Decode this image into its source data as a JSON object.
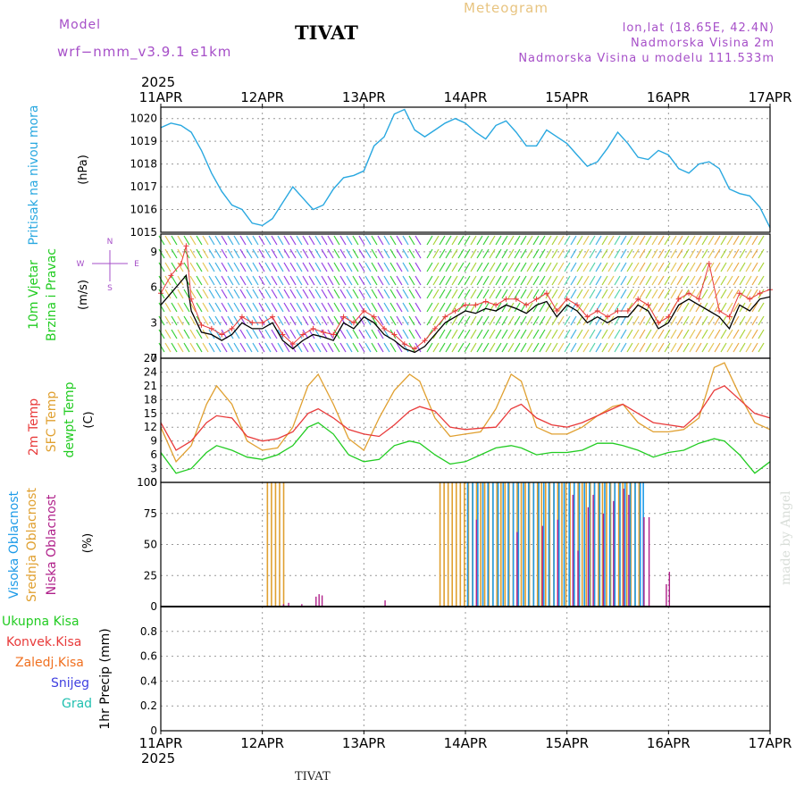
{
  "header": {
    "model_label": "Model",
    "model_name": "wrf−nmm_v3.9.1  e1km",
    "station": "TIVAT",
    "app_title": "Meteogram",
    "lonlat": "lon,lat (18.65E, 42.4N)",
    "elevation": "Nadmorska Visina 2m",
    "model_elevation": "Nadmorska Visina u modelu 111.533m"
  },
  "footer": {
    "station": "TIVAT",
    "credit": "made by Angel"
  },
  "colors": {
    "pressure": "#29a8e0",
    "temp2m": "#e83a3a",
    "sfc_temp": "#e0a030",
    "dewpoint": "#22cc22",
    "wind_speed": "#000000",
    "wind_gust": "#e83a3a",
    "cloud_high": "#1e9be8",
    "cloud_mid": "#e0a030",
    "cloud_low": "#b0208a",
    "precip_total": "#22cc22",
    "precip_conv": "#e83a3a",
    "precip_frozen": "#f07020",
    "snow": "#4040e0",
    "graupel": "#20c0b0",
    "header_purple": "#a64fc8"
  },
  "chart_data": [
    {
      "type": "line",
      "panel": "pressure",
      "year": "2025",
      "x_tick_labels": [
        "11APR",
        "12APR",
        "13APR",
        "14APR",
        "15APR",
        "16APR",
        "17APR"
      ],
      "ylabel_lines": [
        "Pritisak na nivou mora"
      ],
      "unit": "(hPa)",
      "ylim": [
        1015,
        1020.5
      ],
      "yticks": [
        1015,
        1016,
        1017,
        1018,
        1019,
        1020
      ],
      "grid": true,
      "series": [
        {
          "key": "pressure",
          "x": [
            0,
            0.1,
            0.2,
            0.3,
            0.4,
            0.5,
            0.6,
            0.7,
            0.8,
            0.9,
            1.0,
            1.1,
            1.2,
            1.3,
            1.4,
            1.5,
            1.6,
            1.7,
            1.8,
            1.9,
            2.0,
            2.1,
            2.2,
            2.3,
            2.4,
            2.5,
            2.6,
            2.7,
            2.8,
            2.9,
            3.0,
            3.1,
            3.2,
            3.3,
            3.4,
            3.5,
            3.6,
            3.7,
            3.8,
            3.9,
            4.0,
            4.1,
            4.2,
            4.3,
            4.4,
            4.5,
            4.6,
            4.7,
            4.8,
            4.9,
            5.0,
            5.1,
            5.2,
            5.3,
            5.4,
            5.5,
            5.6,
            5.7,
            5.8,
            5.9,
            6.0
          ],
          "values": [
            1019.6,
            1019.8,
            1019.7,
            1019.4,
            1018.6,
            1017.6,
            1016.8,
            1016.2,
            1016.0,
            1015.4,
            1015.3,
            1015.6,
            1016.3,
            1017.0,
            1016.5,
            1016.0,
            1016.2,
            1016.9,
            1017.4,
            1017.5,
            1017.7,
            1018.8,
            1019.2,
            1020.2,
            1020.4,
            1019.5,
            1019.2,
            1019.5,
            1019.8,
            1020.0,
            1019.8,
            1019.4,
            1019.1,
            1019.7,
            1019.9,
            1019.4,
            1018.8,
            1018.8,
            1019.5,
            1019.2,
            1018.9,
            1018.4,
            1017.9,
            1018.1,
            1018.7,
            1019.4,
            1018.9,
            1018.3,
            1018.2,
            1018.6,
            1018.4,
            1017.8,
            1017.6,
            1018.0,
            1018.1,
            1017.8,
            1016.9,
            1016.7,
            1016.6,
            1016.1,
            1015.2
          ]
        }
      ]
    },
    {
      "type": "line",
      "panel": "wind",
      "ylabel_lines": [
        "10m Vjetar",
        "Brzina i Pravac"
      ],
      "unit": "(m/s)",
      "direction_key": [
        "N",
        "E",
        "S",
        "W"
      ],
      "ylim": [
        0,
        10.5
      ],
      "yticks": [
        0,
        3,
        6,
        9
      ],
      "grid": true,
      "series": [
        {
          "key": "speed",
          "x": [
            0,
            0.1,
            0.2,
            0.25,
            0.3,
            0.4,
            0.5,
            0.6,
            0.7,
            0.8,
            0.9,
            1.0,
            1.1,
            1.2,
            1.3,
            1.4,
            1.5,
            1.6,
            1.7,
            1.8,
            1.9,
            2.0,
            2.1,
            2.2,
            2.3,
            2.4,
            2.5,
            2.6,
            2.7,
            2.8,
            2.9,
            3.0,
            3.1,
            3.2,
            3.3,
            3.4,
            3.5,
            3.6,
            3.7,
            3.8,
            3.9,
            4.0,
            4.1,
            4.2,
            4.3,
            4.4,
            4.5,
            4.6,
            4.7,
            4.8,
            4.9,
            5.0,
            5.1,
            5.2,
            5.3,
            5.4,
            5.5,
            5.6,
            5.7,
            5.8,
            5.9,
            6.0
          ],
          "values": [
            4.5,
            5.5,
            6.5,
            7.0,
            4.0,
            2.2,
            2.0,
            1.5,
            2.0,
            3.0,
            2.5,
            2.5,
            3.0,
            1.5,
            0.8,
            1.5,
            2.0,
            1.8,
            1.5,
            3.0,
            2.5,
            3.5,
            3.0,
            2.0,
            1.5,
            0.8,
            0.5,
            1.0,
            2.0,
            3.0,
            3.5,
            4.0,
            3.8,
            4.2,
            4.0,
            4.5,
            4.2,
            3.8,
            4.5,
            4.8,
            3.5,
            4.5,
            4.0,
            3.0,
            3.5,
            3.0,
            3.5,
            3.5,
            4.5,
            4.0,
            2.5,
            3.0,
            4.5,
            5.0,
            4.5,
            4.0,
            3.5,
            2.5,
            4.5,
            4.0,
            5.0,
            5.2
          ]
        },
        {
          "key": "gust",
          "x": [
            0,
            0.1,
            0.2,
            0.25,
            0.3,
            0.4,
            0.5,
            0.6,
            0.7,
            0.8,
            0.9,
            1.0,
            1.1,
            1.2,
            1.3,
            1.4,
            1.5,
            1.6,
            1.7,
            1.8,
            1.9,
            2.0,
            2.1,
            2.2,
            2.3,
            2.4,
            2.5,
            2.6,
            2.7,
            2.8,
            2.9,
            3.0,
            3.1,
            3.2,
            3.3,
            3.4,
            3.5,
            3.6,
            3.7,
            3.8,
            3.9,
            4.0,
            4.1,
            4.2,
            4.3,
            4.4,
            4.5,
            4.6,
            4.7,
            4.8,
            4.9,
            5.0,
            5.1,
            5.2,
            5.3,
            5.4,
            5.5,
            5.6,
            5.7,
            5.8,
            5.9,
            6.0
          ],
          "values": [
            5.5,
            7.0,
            8.0,
            9.5,
            5.0,
            2.8,
            2.5,
            2.0,
            2.5,
            3.5,
            3.0,
            3.0,
            3.5,
            2.0,
            1.2,
            2.0,
            2.5,
            2.2,
            2.0,
            3.5,
            3.0,
            4.0,
            3.5,
            2.5,
            2.0,
            1.2,
            0.8,
            1.5,
            2.5,
            3.5,
            4.0,
            4.5,
            4.5,
            4.8,
            4.5,
            5.0,
            5.0,
            4.5,
            5.0,
            5.5,
            4.0,
            5.0,
            4.5,
            3.5,
            4.0,
            3.5,
            4.0,
            4.0,
            5.0,
            4.5,
            3.0,
            3.5,
            5.0,
            5.5,
            5.0,
            8.0,
            4.0,
            3.5,
            5.5,
            5.0,
            5.5,
            5.8
          ]
        }
      ]
    },
    {
      "type": "line",
      "panel": "temperature",
      "ylabel_lines": [
        "2m Temp",
        "SFC Temp",
        "dewpt Temp"
      ],
      "unit": "(C)",
      "ylim": [
        0,
        27
      ],
      "yticks": [
        0,
        3,
        6,
        9,
        12,
        15,
        18,
        21,
        24,
        27
      ],
      "grid": true,
      "series": [
        {
          "key": "temp2m",
          "x": [
            0,
            0.15,
            0.3,
            0.45,
            0.55,
            0.7,
            0.85,
            1.0,
            1.15,
            1.3,
            1.45,
            1.55,
            1.7,
            1.85,
            2.0,
            2.15,
            2.3,
            2.45,
            2.55,
            2.7,
            2.85,
            3.0,
            3.15,
            3.3,
            3.45,
            3.55,
            3.7,
            3.85,
            4.0,
            4.15,
            4.3,
            4.45,
            4.55,
            4.7,
            4.85,
            5.0,
            5.15,
            5.3,
            5.45,
            5.55,
            5.7,
            5.85,
            6.0
          ],
          "values": [
            13.0,
            7.0,
            9.0,
            13.0,
            14.5,
            14.0,
            10.0,
            9.0,
            9.5,
            11.0,
            15.0,
            16.0,
            14.0,
            11.5,
            10.5,
            10.0,
            12.5,
            15.5,
            16.5,
            15.5,
            12.0,
            11.5,
            11.8,
            12.0,
            16.0,
            17.0,
            14.0,
            12.5,
            12.0,
            13.0,
            14.5,
            16.0,
            17.0,
            15.0,
            13.0,
            12.5,
            12.0,
            15.0,
            20.0,
            21.0,
            18.0,
            15.0,
            14.0
          ]
        },
        {
          "key": "sfc_temp",
          "x": [
            0,
            0.15,
            0.3,
            0.45,
            0.55,
            0.7,
            0.85,
            1.0,
            1.15,
            1.3,
            1.45,
            1.55,
            1.7,
            1.85,
            2.0,
            2.15,
            2.3,
            2.45,
            2.55,
            2.7,
            2.85,
            3.0,
            3.15,
            3.3,
            3.45,
            3.55,
            3.7,
            3.85,
            4.0,
            4.15,
            4.3,
            4.45,
            4.55,
            4.7,
            4.85,
            5.0,
            5.15,
            5.3,
            5.45,
            5.55,
            5.7,
            5.85,
            6.0
          ],
          "values": [
            12.0,
            4.5,
            8.0,
            17.0,
            21.0,
            17.0,
            9.0,
            7.0,
            7.5,
            12.0,
            21.0,
            23.5,
            17.0,
            9.5,
            7.0,
            14.0,
            20.0,
            23.5,
            22.0,
            14.0,
            10.0,
            10.5,
            11.0,
            16.0,
            23.5,
            22.0,
            12.0,
            10.5,
            10.5,
            12.0,
            14.5,
            16.5,
            17.0,
            13.0,
            11.0,
            11.0,
            11.5,
            14.0,
            25.0,
            26.0,
            19.0,
            13.0,
            11.5
          ]
        },
        {
          "key": "dewpoint",
          "x": [
            0,
            0.15,
            0.3,
            0.45,
            0.55,
            0.7,
            0.85,
            1.0,
            1.15,
            1.3,
            1.45,
            1.55,
            1.7,
            1.85,
            2.0,
            2.15,
            2.3,
            2.45,
            2.55,
            2.7,
            2.85,
            3.0,
            3.15,
            3.3,
            3.45,
            3.55,
            3.7,
            3.85,
            4.0,
            4.15,
            4.3,
            4.45,
            4.55,
            4.7,
            4.85,
            5.0,
            5.15,
            5.3,
            5.45,
            5.55,
            5.7,
            5.85,
            6.0
          ],
          "values": [
            6.5,
            2.0,
            3.0,
            6.5,
            8.0,
            7.0,
            5.5,
            5.0,
            6.0,
            8.0,
            12.0,
            13.0,
            10.5,
            6.0,
            4.5,
            5.0,
            8.0,
            9.0,
            8.5,
            6.0,
            4.0,
            4.5,
            6.0,
            7.5,
            8.0,
            7.5,
            6.0,
            6.5,
            6.5,
            7.0,
            8.5,
            8.5,
            8.0,
            7.0,
            5.5,
            6.5,
            7.0,
            8.5,
            9.5,
            9.0,
            6.0,
            2.0,
            4.5
          ]
        }
      ]
    },
    {
      "type": "bar",
      "panel": "cloud",
      "ylabel_lines": [
        "Visoka Oblacnost",
        "Srednja Oblacnost",
        "Niska Oblacnost"
      ],
      "unit": "(%)",
      "ylim": [
        0,
        100
      ],
      "yticks": [
        0,
        25,
        50,
        75,
        100
      ],
      "grid": true,
      "series": [
        {
          "key": "mid",
          "x": [
            1.05,
            1.09,
            1.13,
            1.17,
            1.21,
            2.75,
            2.79,
            2.83,
            2.87,
            2.91,
            2.95,
            2.99,
            3.03,
            3.07,
            3.11,
            3.15,
            3.19,
            3.23,
            3.27,
            3.31,
            3.35,
            3.39,
            3.43,
            3.47,
            3.51,
            3.55,
            3.59,
            3.63,
            3.67,
            3.71,
            3.75,
            3.79,
            3.83,
            3.87,
            3.91,
            3.95,
            3.99,
            4.03,
            4.07,
            4.11,
            4.15,
            4.19,
            4.23,
            4.27,
            4.31,
            4.35,
            4.39,
            4.43,
            4.47,
            4.51,
            4.55,
            4.59,
            4.63,
            4.67,
            4.71
          ],
          "values": [
            100,
            100,
            100,
            100,
            100,
            100,
            100,
            100,
            100,
            100,
            100,
            100,
            100,
            100,
            100,
            100,
            100,
            100,
            100,
            100,
            100,
            100,
            100,
            100,
            100,
            100,
            100,
            100,
            100,
            100,
            100,
            100,
            100,
            100,
            100,
            100,
            100,
            100,
            100,
            100,
            100,
            100,
            100,
            100,
            100,
            100,
            100,
            100,
            100,
            100,
            100,
            100,
            100,
            100,
            100
          ]
        },
        {
          "key": "high",
          "x": [
            3.0,
            3.05,
            3.1,
            3.15,
            3.2,
            3.25,
            3.3,
            3.35,
            3.4,
            3.45,
            3.5,
            3.55,
            3.6,
            3.65,
            3.7,
            3.75,
            3.8,
            3.85,
            3.9,
            3.95,
            4.0,
            4.05,
            4.1,
            4.15,
            4.2,
            4.25,
            4.3,
            4.35,
            4.4,
            4.45,
            4.5,
            4.55,
            4.6,
            4.65,
            4.7,
            4.73
          ],
          "values": [
            100,
            100,
            100,
            100,
            100,
            100,
            100,
            100,
            100,
            100,
            100,
            100,
            100,
            100,
            100,
            100,
            100,
            100,
            100,
            100,
            100,
            100,
            100,
            100,
            100,
            100,
            100,
            100,
            100,
            100,
            100,
            100,
            100,
            100,
            100,
            100
          ]
        },
        {
          "key": "low",
          "x": [
            1.2,
            1.25,
            1.38,
            1.52,
            1.55,
            1.58,
            2.2,
            3.1,
            3.5,
            3.75,
            3.9,
            4.05,
            4.1,
            4.2,
            4.25,
            4.35,
            4.45,
            4.55,
            4.6,
            4.75,
            4.8,
            4.97,
            5.0
          ],
          "values": [
            2,
            3,
            2,
            8,
            10,
            9,
            5,
            70,
            60,
            65,
            70,
            90,
            45,
            80,
            90,
            75,
            85,
            95,
            90,
            72,
            72,
            18,
            28
          ]
        }
      ]
    },
    {
      "type": "bar",
      "panel": "precip",
      "ylabel_lines": [
        "1hr Precip"
      ],
      "unit": "(mm)",
      "legend_items": [
        "Ukupna Kisa",
        "Konvek.Kisa",
        "Zaledj.Kisa",
        "Snijeg",
        "Grad"
      ],
      "ylim": [
        0,
        1.0
      ],
      "yticks": [
        0,
        0.2,
        0.4,
        0.6,
        0.8
      ],
      "grid": true,
      "series": [
        {
          "key": "total",
          "x": [],
          "values": []
        }
      ]
    }
  ]
}
